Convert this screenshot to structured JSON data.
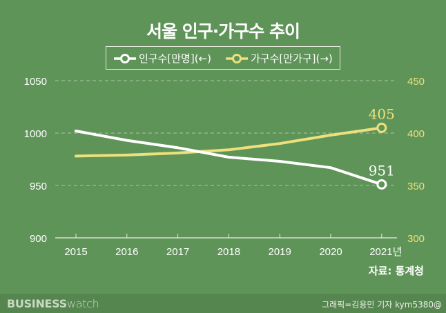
{
  "title": "서울 인구·가구수 추이",
  "legend": [
    {
      "label": "인구수[만명](←)",
      "color": "#ffffff"
    },
    {
      "label": "가구수[만가구](→)",
      "color": "#ede07d"
    }
  ],
  "source": "자료: 통계청",
  "footer": {
    "brand_bold": "BUSINESS",
    "brand_light": "watch",
    "credit": "그래픽=김용민 기자 kym5380@"
  },
  "colors": {
    "background": "#5f9459",
    "population": "#ffffff",
    "households": "#ede07d",
    "grid": "#a9c6a2"
  },
  "chart_data": {
    "type": "line",
    "title": "서울 인구·가구수 추이",
    "categories": [
      "2015",
      "2016",
      "2017",
      "2018",
      "2019",
      "2020",
      "2021년"
    ],
    "series": [
      {
        "name": "인구수[만명](←)",
        "axis": "left",
        "values": [
          1002,
          993,
          986,
          977,
          973,
          967,
          951
        ],
        "end_label": "951"
      },
      {
        "name": "가구수[만가구](→)",
        "axis": "right",
        "values": [
          378,
          379,
          381,
          384,
          390,
          398,
          405
        ],
        "end_label": "405"
      }
    ],
    "y_left": {
      "ticks": [
        "900",
        "950",
        "1000",
        "1050"
      ],
      "range": [
        900,
        1050
      ]
    },
    "y_right": {
      "ticks": [
        "300",
        "350",
        "400",
        "450"
      ],
      "range": [
        300,
        450
      ]
    },
    "grid": true,
    "legend_position": "top-center"
  }
}
